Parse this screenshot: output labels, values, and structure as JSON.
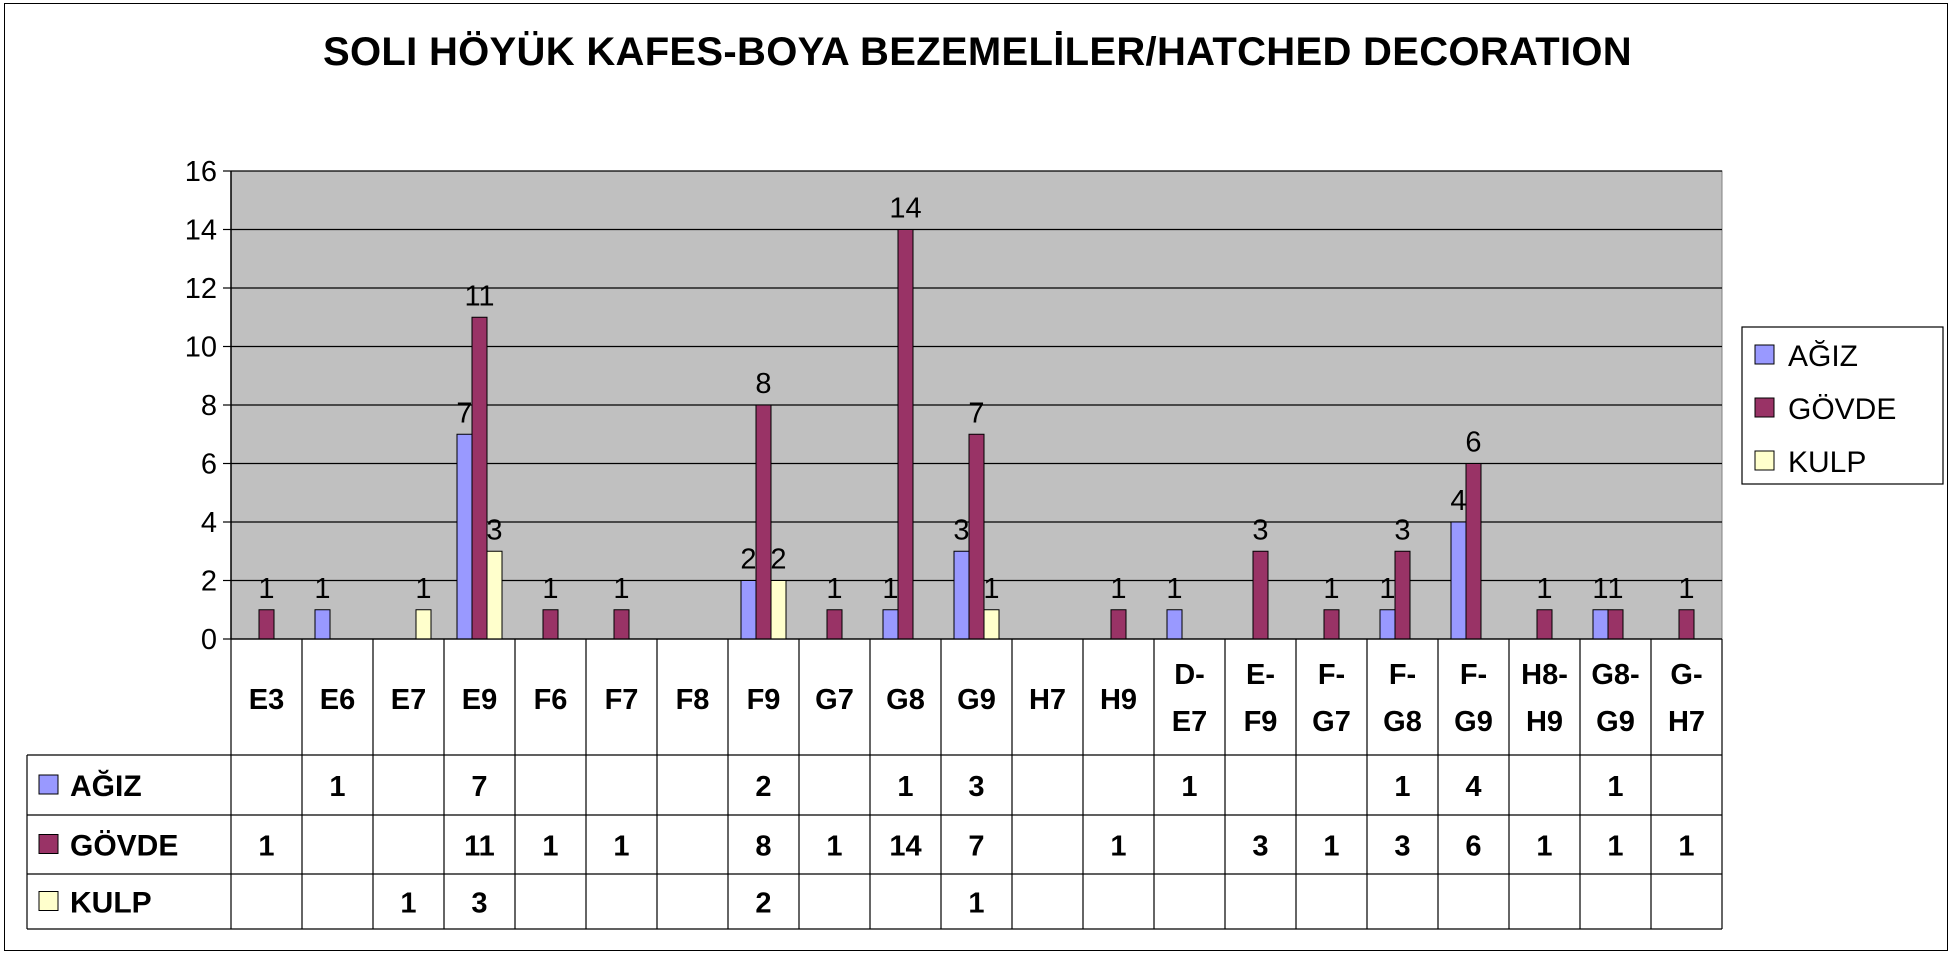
{
  "chart_data": {
    "type": "bar",
    "title": "SOLI HÖYÜK KAFES-BOYA BEZEMELİLER/HATCHED DECORATION",
    "xlabel": "",
    "ylabel": "",
    "ylim": [
      0,
      16
    ],
    "yticks": [
      "0",
      "2",
      "4",
      "6",
      "8",
      "10",
      "12",
      "14",
      "16"
    ],
    "grid": true,
    "legend_position": "right",
    "categories": [
      [
        "E3"
      ],
      [
        "E6"
      ],
      [
        "E7"
      ],
      [
        "E9"
      ],
      [
        "F6"
      ],
      [
        "F7"
      ],
      [
        "F8"
      ],
      [
        "F9"
      ],
      [
        "G7"
      ],
      [
        "G8"
      ],
      [
        "G9"
      ],
      [
        "H7"
      ],
      [
        "H9"
      ],
      [
        "D-",
        "E7"
      ],
      [
        "E-",
        "F9"
      ],
      [
        "F-",
        "G7"
      ],
      [
        "F-",
        "G8"
      ],
      [
        "F-",
        "G9"
      ],
      [
        "H8-",
        "H9"
      ],
      [
        "G8-",
        "G9"
      ],
      [
        "G-",
        "H7"
      ]
    ],
    "series": [
      {
        "name": "AĞIZ",
        "color": "#9999ff",
        "values": [
          null,
          1,
          null,
          7,
          null,
          null,
          null,
          2,
          null,
          1,
          3,
          null,
          null,
          1,
          null,
          null,
          1,
          4,
          null,
          1,
          null
        ]
      },
      {
        "name": "GÖVDE",
        "color": "#993366",
        "values": [
          1,
          null,
          null,
          11,
          1,
          1,
          null,
          8,
          1,
          14,
          7,
          null,
          1,
          null,
          3,
          1,
          3,
          6,
          1,
          1,
          1
        ]
      },
      {
        "name": "KULP",
        "color": "#ffffcc",
        "values": [
          null,
          null,
          1,
          3,
          null,
          null,
          null,
          2,
          null,
          null,
          1,
          null,
          null,
          null,
          null,
          null,
          null,
          null,
          null,
          null,
          null
        ]
      }
    ],
    "colors": {
      "plot_background": "#c0c0c0",
      "gridline": "#000000",
      "frame": "#000000"
    }
  }
}
